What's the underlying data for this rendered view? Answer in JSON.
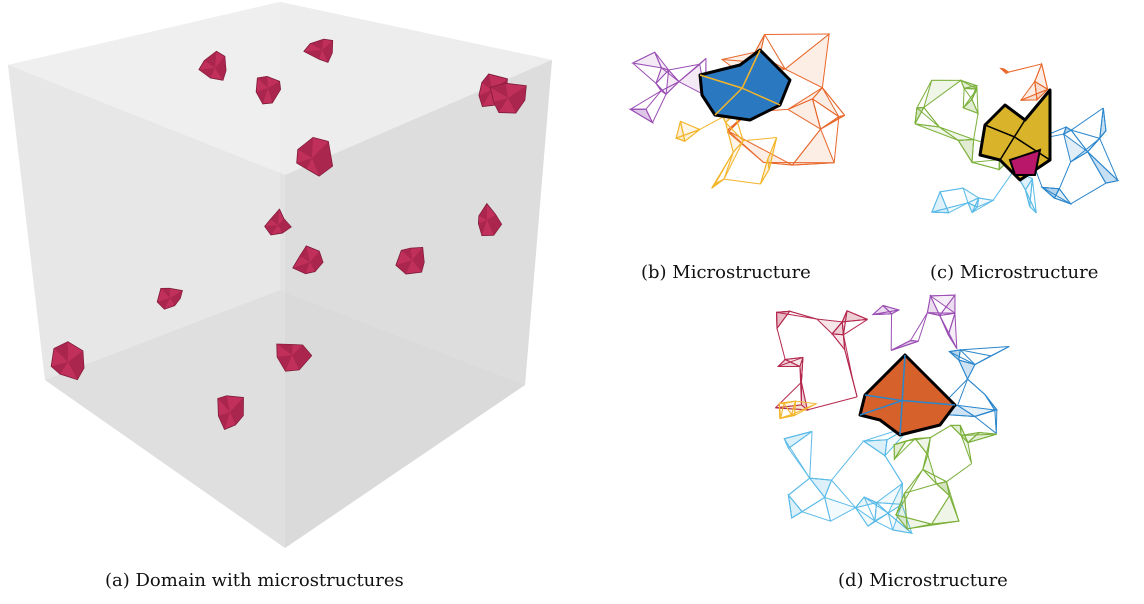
{
  "figure": {
    "panels": [
      {
        "id": "a",
        "caption": "(a) Domain with microstructures"
      },
      {
        "id": "b",
        "caption": "(b) Microstructure"
      },
      {
        "id": "c",
        "caption": "(c) Microstructure"
      },
      {
        "id": "d",
        "caption": "(d) Microstructure"
      }
    ],
    "inclusion_color": "#c0305a",
    "cube_face_colors": [
      "#eeeeee",
      "#e2e2e2",
      "#d7d7d7"
    ],
    "mesh_colors": {
      "b": {
        "core": "#2a78c0",
        "regions": [
          "#9b4fb5",
          "#e8672a",
          "#f3b52a"
        ]
      },
      "c": {
        "core": "#d9b42a",
        "regions": [
          "#7bb03a",
          "#e8672a",
          "#2b86cc",
          "#5bbbe8"
        ],
        "accent": "#b8176a"
      },
      "d": {
        "core": "#d6612a",
        "regions": [
          "#b5284e",
          "#9b4fb5",
          "#2b86cc",
          "#5bbbe8",
          "#7bb03a",
          "#f3b52a"
        ]
      }
    }
  }
}
